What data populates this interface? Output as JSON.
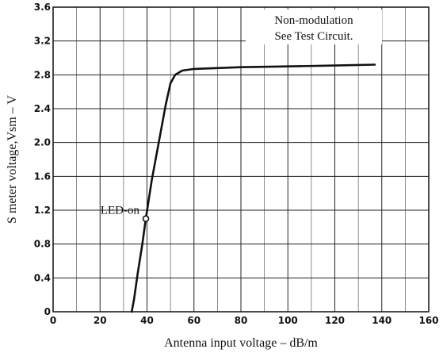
{
  "chart_data": {
    "type": "line",
    "title": "",
    "xlabel": "Antenna input voltage  –  dB/m",
    "ylabel": "S meter voltage,Vsm  –  V",
    "xlim": [
      0,
      160
    ],
    "ylim": [
      0,
      3.6
    ],
    "x_ticks": [
      "0",
      "20",
      "40",
      "60",
      "80",
      "100",
      "120",
      "140",
      "160"
    ],
    "y_ticks": [
      "0",
      "0.4",
      "0.8",
      "1.2",
      "1.6",
      "2.0",
      "2.4",
      "2.8",
      "3.2",
      "3.6"
    ],
    "grid": true,
    "notes": [
      "Non-modulation",
      "See Test Circuit."
    ],
    "annotation": {
      "label": "LED-on",
      "x": 39.5,
      "y": 1.1
    },
    "series": [
      {
        "x": [
          33.5,
          34.5,
          36,
          38,
          39.5,
          42,
          45,
          48,
          50,
          52,
          55,
          60,
          70,
          80,
          100,
          120,
          137
        ],
        "y": [
          0,
          0.15,
          0.45,
          0.8,
          1.1,
          1.55,
          2.0,
          2.45,
          2.7,
          2.8,
          2.85,
          2.87,
          2.88,
          2.89,
          2.9,
          2.91,
          2.92
        ]
      }
    ]
  }
}
